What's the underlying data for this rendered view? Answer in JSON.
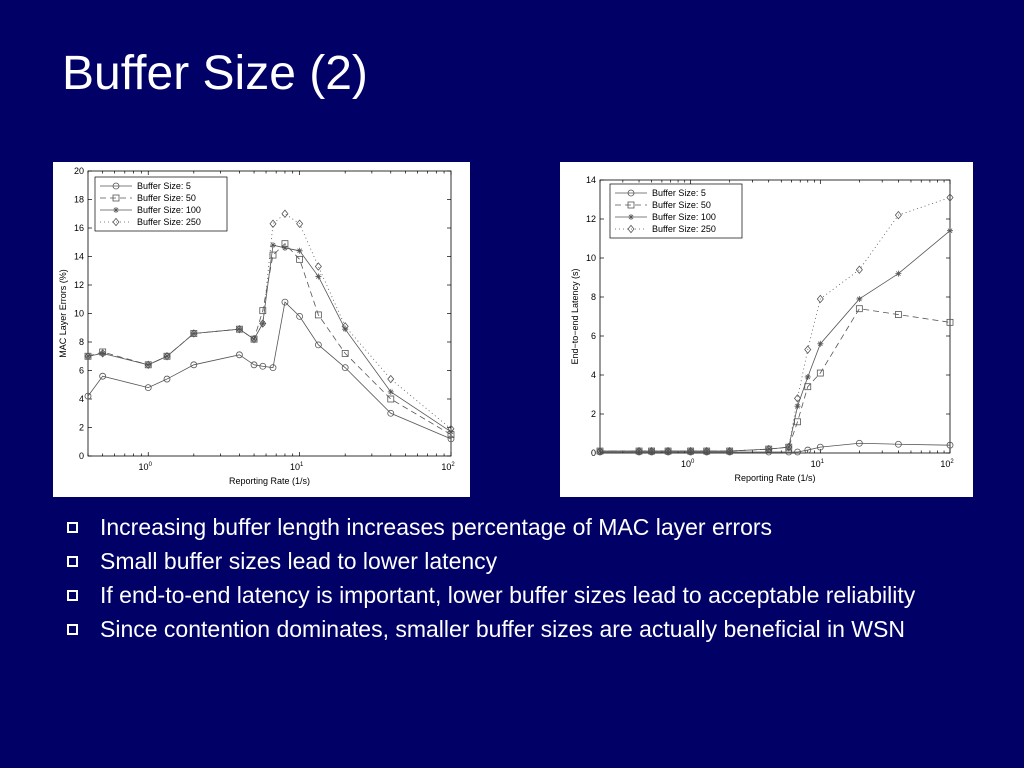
{
  "title": "Buffer Size (2)",
  "bullets": [
    "Increasing buffer length increases percentage of MAC layer errors",
    "Small buffer sizes lead to lower latency",
    "If end-to-end latency is important, lower buffer sizes lead to acceptable reliability",
    "Since contention dominates, smaller buffer sizes are actually beneficial in WSN"
  ],
  "colors": {
    "background": "#000066",
    "text": "#ffffff",
    "chart_line": "#555555"
  },
  "chart_data": [
    {
      "type": "line",
      "xscale": "log",
      "xlim": [
        0.4,
        100
      ],
      "ylim": [
        0,
        20
      ],
      "xlabel": "Reporting Rate (1/s)",
      "ylabel": "MAC Layer Errors (%)",
      "yticks": [
        0,
        2,
        4,
        6,
        8,
        10,
        12,
        14,
        16,
        18,
        20
      ],
      "xticks": [
        {
          "base": "10",
          "exp": "0",
          "value": 1
        },
        {
          "base": "10",
          "exp": "1",
          "value": 10
        },
        {
          "base": "10",
          "exp": "2",
          "value": 100
        }
      ],
      "legend_position": "top-left",
      "grid": false,
      "x": [
        0.4,
        0.5,
        1,
        1.33,
        2,
        4,
        5,
        5.71,
        6.67,
        8,
        10,
        13.3,
        20,
        40,
        100
      ],
      "series": [
        {
          "name": "Buffer Size: 5",
          "marker": "circle",
          "dash": "",
          "values": [
            4.2,
            5.6,
            4.8,
            5.4,
            6.4,
            7.1,
            6.4,
            6.3,
            6.2,
            10.8,
            9.8,
            7.8,
            6.2,
            3.0,
            1.2
          ]
        },
        {
          "name": "Buffer Size: 50",
          "marker": "square",
          "dash": "6,4",
          "values": [
            7.0,
            7.3,
            6.4,
            7.0,
            8.6,
            8.9,
            8.2,
            10.2,
            14.1,
            14.9,
            13.8,
            9.9,
            7.2,
            4.0,
            1.5
          ]
        },
        {
          "name": "Buffer Size: 100",
          "marker": "star",
          "dash": "",
          "values": [
            7.0,
            7.2,
            6.4,
            7.0,
            8.6,
            8.9,
            8.2,
            9.3,
            14.8,
            14.6,
            14.4,
            12.6,
            8.9,
            4.5,
            1.7
          ]
        },
        {
          "name": "Buffer Size: 250",
          "marker": "diamond",
          "dash": "1,3",
          "values": [
            7.0,
            7.2,
            6.4,
            7.0,
            8.6,
            8.9,
            8.2,
            9.3,
            16.3,
            17.0,
            16.3,
            13.3,
            9.1,
            5.4,
            1.9
          ]
        }
      ]
    },
    {
      "type": "line",
      "xscale": "log",
      "xlim": [
        0.2,
        100
      ],
      "ylim": [
        0,
        14
      ],
      "xlabel": "Reporting Rate (1/s)",
      "ylabel": "End−to−end Latency (s)",
      "yticks": [
        0,
        2,
        4,
        6,
        8,
        10,
        12,
        14
      ],
      "xticks": [
        {
          "base": "10",
          "exp": "0",
          "value": 1
        },
        {
          "base": "10",
          "exp": "1",
          "value": 10
        },
        {
          "base": "10",
          "exp": "2",
          "value": 100
        }
      ],
      "legend_position": "top-left",
      "grid": false,
      "x": [
        0.2,
        0.4,
        0.5,
        0.67,
        1,
        1.33,
        2,
        4,
        5.71,
        6.67,
        8,
        10,
        20,
        40,
        100
      ],
      "series": [
        {
          "name": "Buffer Size: 5",
          "marker": "circle",
          "dash": "",
          "values": [
            0.05,
            0.05,
            0.05,
            0.05,
            0.05,
            0.05,
            0.05,
            0.05,
            0.05,
            0.05,
            0.15,
            0.3,
            0.5,
            0.45,
            0.4
          ]
        },
        {
          "name": "Buffer Size: 50",
          "marker": "square",
          "dash": "6,4",
          "values": [
            0.1,
            0.1,
            0.1,
            0.1,
            0.1,
            0.1,
            0.1,
            0.2,
            0.3,
            1.6,
            3.4,
            4.1,
            7.4,
            7.1,
            6.7
          ]
        },
        {
          "name": "Buffer Size: 100",
          "marker": "star",
          "dash": "",
          "values": [
            0.1,
            0.1,
            0.1,
            0.1,
            0.1,
            0.1,
            0.1,
            0.2,
            0.3,
            2.4,
            3.9,
            5.6,
            7.9,
            9.2,
            11.4
          ]
        },
        {
          "name": "Buffer Size: 250",
          "marker": "diamond",
          "dash": "1,3",
          "values": [
            0.1,
            0.1,
            0.1,
            0.1,
            0.1,
            0.1,
            0.1,
            0.2,
            0.3,
            2.8,
            5.3,
            7.9,
            9.4,
            12.2,
            13.1
          ]
        }
      ]
    }
  ]
}
